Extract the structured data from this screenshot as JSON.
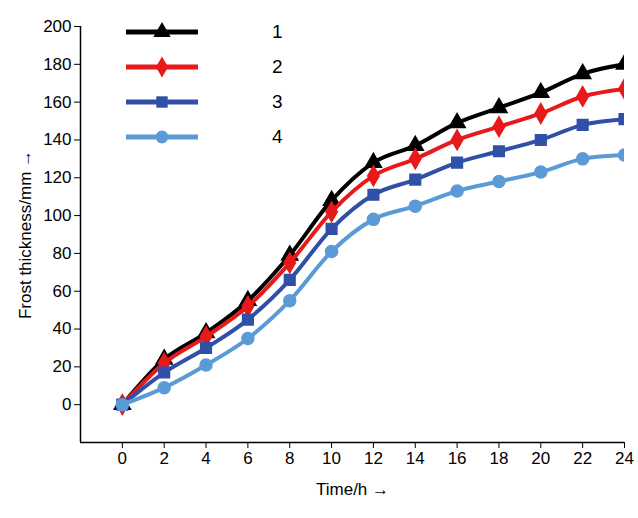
{
  "chart_data": {
    "type": "line",
    "x_label": "Time/h",
    "y_label": "Frost thickness/mm",
    "x": [
      0,
      2,
      4,
      6,
      8,
      10,
      12,
      14,
      16,
      18,
      20,
      22,
      24
    ],
    "series": [
      {
        "name": "1",
        "color": "#000000",
        "marker": "triangle",
        "values": [
          0,
          24,
          38,
          55,
          79,
          108,
          128,
          137,
          149,
          157,
          165,
          175,
          180
        ]
      },
      {
        "name": "2",
        "color": "#e8191a",
        "marker": "diamond",
        "values": [
          0,
          22,
          36,
          52,
          75,
          102,
          121,
          130,
          140,
          147,
          154,
          163,
          167
        ]
      },
      {
        "name": "3",
        "color": "#3050a8",
        "marker": "square",
        "values": [
          0,
          17,
          30,
          45,
          66,
          93,
          111,
          119,
          128,
          134,
          140,
          148,
          151
        ]
      },
      {
        "name": "4",
        "color": "#5b9bd5",
        "marker": "circle",
        "values": [
          0,
          9,
          21,
          35,
          55,
          81,
          98,
          105,
          113,
          118,
          123,
          130,
          132
        ]
      }
    ],
    "xlim": [
      -2,
      24
    ],
    "xticks": [
      0,
      2,
      4,
      6,
      8,
      10,
      12,
      14,
      16,
      18,
      20,
      22,
      24
    ],
    "ylim": [
      -20,
      200
    ],
    "yticks": [
      0,
      20,
      40,
      60,
      80,
      100,
      120,
      140,
      160,
      180,
      200
    ],
    "grid": false,
    "legend": "top-left"
  }
}
